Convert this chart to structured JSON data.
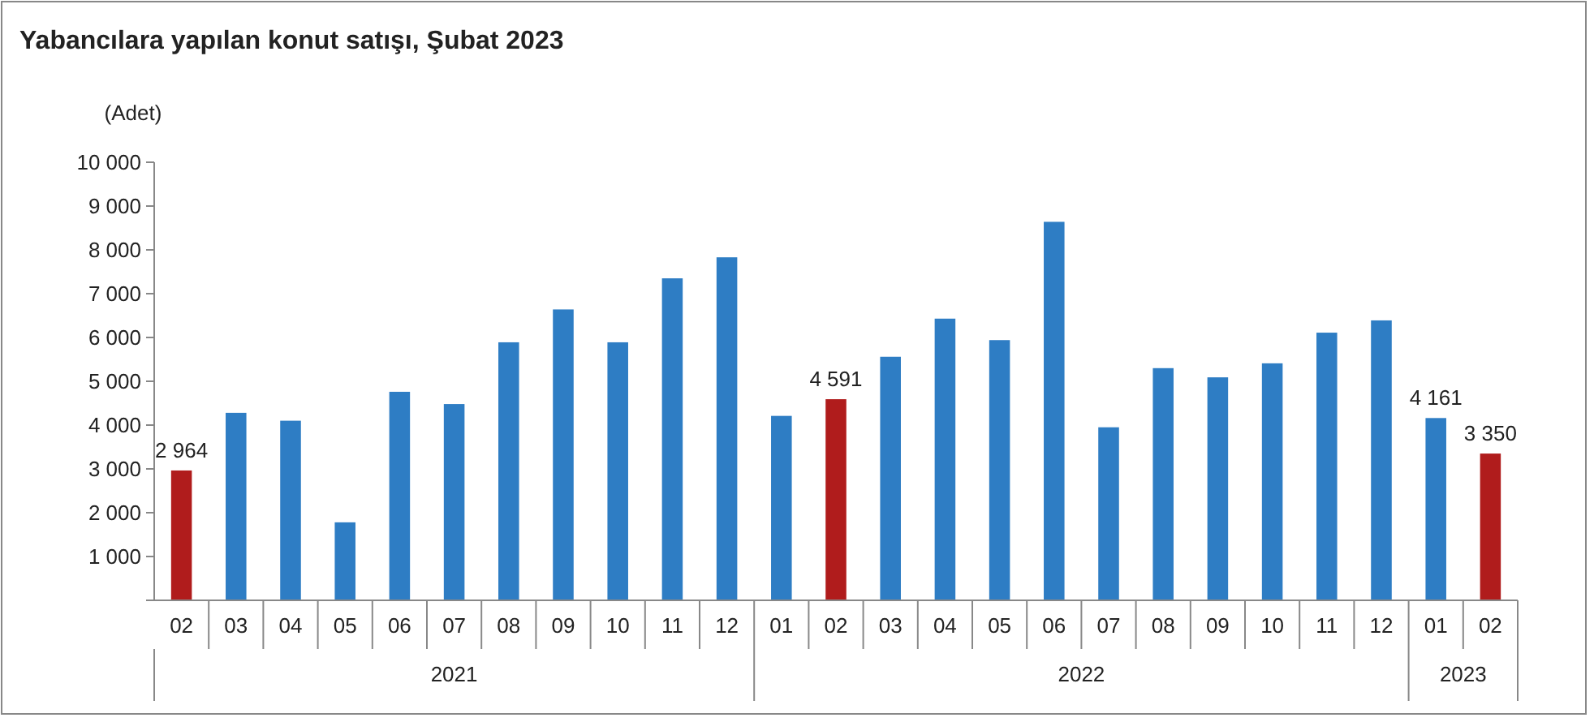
{
  "chart_data": {
    "type": "bar",
    "title": "Yabancılara yapılan konut satışı, Şubat 2023",
    "ylabel": "(Adet)",
    "categories": [
      "02",
      "03",
      "04",
      "05",
      "06",
      "07",
      "08",
      "09",
      "10",
      "11",
      "12",
      "01",
      "02",
      "03",
      "04",
      "05",
      "06",
      "07",
      "08",
      "09",
      "10",
      "11",
      "12",
      "01",
      "02"
    ],
    "values": [
      2964,
      4280,
      4100,
      1780,
      4760,
      4480,
      5890,
      6640,
      5890,
      7350,
      7830,
      4210,
      4591,
      5560,
      6430,
      5940,
      8640,
      3950,
      5300,
      5090,
      5410,
      6110,
      6390,
      4161,
      3350
    ],
    "colors": [
      "#b01c1c",
      "#2e7dc4",
      "#2e7dc4",
      "#2e7dc4",
      "#2e7dc4",
      "#2e7dc4",
      "#2e7dc4",
      "#2e7dc4",
      "#2e7dc4",
      "#2e7dc4",
      "#2e7dc4",
      "#2e7dc4",
      "#b01c1c",
      "#2e7dc4",
      "#2e7dc4",
      "#2e7dc4",
      "#2e7dc4",
      "#2e7dc4",
      "#2e7dc4",
      "#2e7dc4",
      "#2e7dc4",
      "#2e7dc4",
      "#2e7dc4",
      "#2e7dc4",
      "#b01c1c"
    ],
    "value_labels": [
      "2 964",
      null,
      null,
      null,
      null,
      null,
      null,
      null,
      null,
      null,
      null,
      null,
      "4 591",
      null,
      null,
      null,
      null,
      null,
      null,
      null,
      null,
      null,
      null,
      "4 161",
      "3 350"
    ],
    "annotations": [
      "2021",
      "2022",
      "2023"
    ],
    "ylim": [
      0,
      10000
    ],
    "yticks": [
      {
        "value": 0,
        "label": null
      },
      {
        "value": 1000,
        "label": "1 000"
      },
      {
        "value": 2000,
        "label": "2 000"
      },
      {
        "value": 3000,
        "label": "3 000"
      },
      {
        "value": 4000,
        "label": "4 000"
      },
      {
        "value": 5000,
        "label": "5 000"
      },
      {
        "value": 6000,
        "label": "6 000"
      },
      {
        "value": 7000,
        "label": "7 000"
      },
      {
        "value": 8000,
        "label": "8 000"
      },
      {
        "value": 9000,
        "label": "9 000"
      },
      {
        "value": 10000,
        "label": "10 000"
      }
    ],
    "grid": false
  }
}
